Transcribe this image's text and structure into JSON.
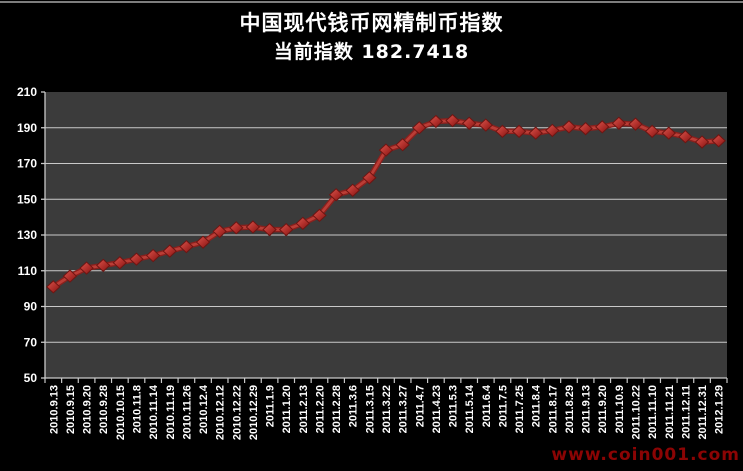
{
  "header": {
    "title": "中国现代钱币网精制币指数",
    "subtitle_label": "当前指数",
    "subtitle_value": "182.7418",
    "subtitle": "当前指数 182.7418"
  },
  "watermark": "www.coin001.com",
  "colors": {
    "page_background": "#000000",
    "plot_background": "#3b3b3b",
    "gridline": "#c9c9c9",
    "axis": "#c9c9c9",
    "line_dark": "#8a201d",
    "line_light": "#bb3d36",
    "marker_fill_light": "#d9574e",
    "marker_fill_mid": "#b02e2a",
    "marker_fill_dark": "#7c1714",
    "marker_stroke": "#6e1512",
    "axis_text": "#ffffff",
    "title_text": "#ffffff",
    "watermark_text": "#8b0404",
    "top_strip": "#7d7d7d"
  },
  "chart_data": {
    "type": "line",
    "title": "中国现代钱币网精制币指数",
    "subtitle": "当前指数 182.7418",
    "marker": "diamond",
    "grid": true,
    "legend": "none",
    "xlabel": "",
    "ylabel": "",
    "ylim": [
      50,
      210
    ],
    "ytick_step": 20,
    "yticks": [
      50,
      70,
      90,
      110,
      130,
      150,
      170,
      190,
      210
    ],
    "categories": [
      "2010.9.13",
      "2010.9.15",
      "2010.9.20",
      "2010.9.28",
      "2010.10.15",
      "2010.11.8",
      "2010.11.14",
      "2010.11.19",
      "2010.11.26",
      "2010.12.4",
      "2010.12.12",
      "2010.12.22",
      "2010.12.29",
      "2011.1.9",
      "2011.1.20",
      "2011.2.13",
      "2011.2.20",
      "2011.2.28",
      "2011.3.6",
      "2011.3.15",
      "2011.3.22",
      "2011.3.27",
      "2011.4.7",
      "2011.4.23",
      "2011.5.3",
      "2011.5.14",
      "2011.6.4",
      "2011.7.5",
      "2011.7.25",
      "2011.8.4",
      "2011.8.17",
      "2011.8.29",
      "2011.9.13",
      "2011.9.20",
      "2011.10.9",
      "2011.10.22",
      "2011.11.10",
      "2011.11.21",
      "2011.12.11",
      "2011.12.31",
      "2012.1.29"
    ],
    "values": [
      101,
      107,
      111.5,
      113,
      114.5,
      116.5,
      118.5,
      121,
      123.5,
      126,
      132,
      134,
      134.5,
      133,
      133,
      136.5,
      141,
      152.5,
      155,
      162,
      177.5,
      180.5,
      190,
      193.5,
      194,
      192.5,
      191.5,
      188,
      188,
      187,
      188.5,
      190.5,
      189.5,
      190.5,
      192.5,
      192,
      188,
      187,
      185,
      182,
      182.7418
    ]
  }
}
